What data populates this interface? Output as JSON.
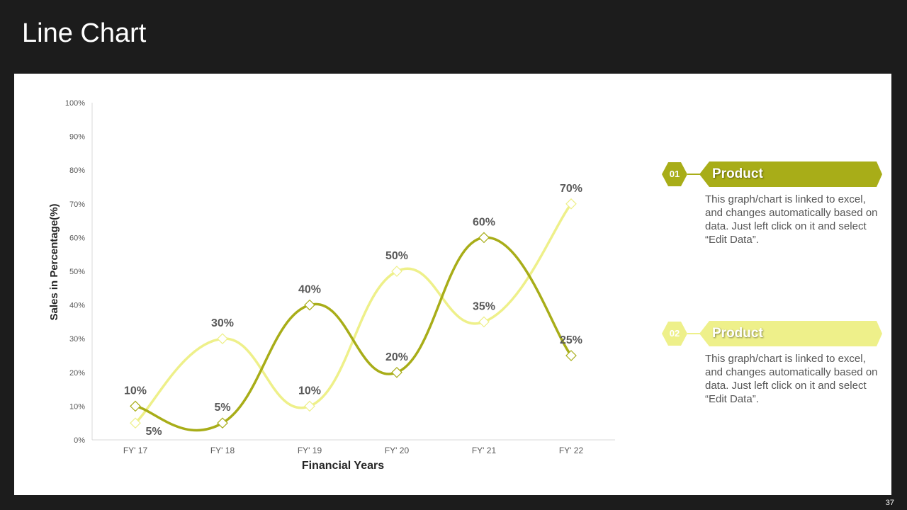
{
  "slide": {
    "title": "Line Chart",
    "page_number": "37"
  },
  "chart_data": {
    "type": "line",
    "categories": [
      "FY' 17",
      "FY' 18",
      "FY' 19",
      "FY' 20",
      "FY' 21",
      "FY' 22"
    ],
    "series": [
      {
        "name": "Product",
        "color": "#a8ad18",
        "values": [
          10,
          5,
          40,
          20,
          60,
          25
        ]
      },
      {
        "name": "Product",
        "color": "#eef08a",
        "values": [
          5,
          30,
          10,
          50,
          35,
          70
        ]
      }
    ],
    "data_labels": [
      [
        "10%",
        "5%",
        "40%",
        "20%",
        "60%",
        "25%"
      ],
      [
        "5%",
        "30%",
        "10%",
        "50%",
        "35%",
        "70%"
      ]
    ],
    "yticks": [
      "0%",
      "10%",
      "20%",
      "30%",
      "40%",
      "50%",
      "60%",
      "70%",
      "80%",
      "90%",
      "100%"
    ],
    "ylim": [
      0,
      100
    ],
    "xlabel": "Financial Years",
    "ylabel": "Sales in Percentage(%)",
    "smooth": true,
    "marker": "diamond",
    "grid": false
  },
  "legend": [
    {
      "number": "01",
      "label": "Product",
      "color": "#a8ad18",
      "description": "This graph/chart is linked to excel, and changes automatically based on data. Just left click on it and select “Edit Data”."
    },
    {
      "number": "02",
      "label": "Product",
      "color": "#eef08a",
      "description": "This graph/chart is linked to excel, and changes automatically based on data. Just left click on it and select “Edit Data”."
    }
  ]
}
